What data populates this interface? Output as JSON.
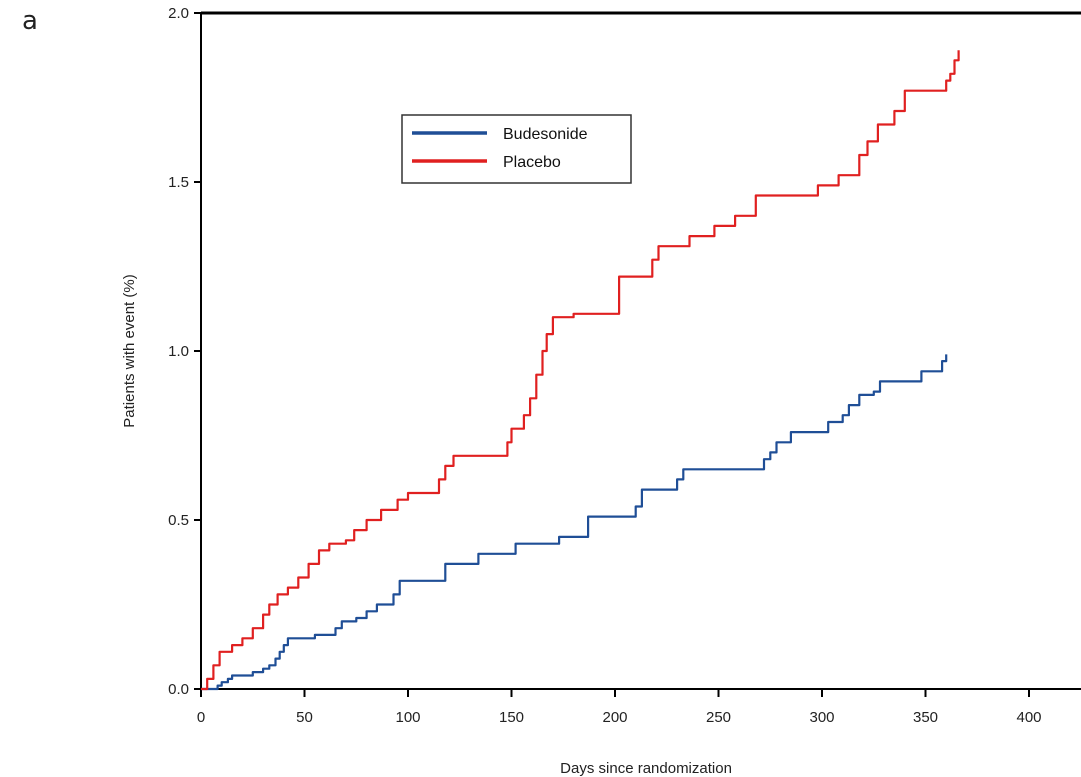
{
  "panel_label": "a",
  "chart_data": {
    "type": "line",
    "step": true,
    "title": "",
    "xlabel": "Days since randomization",
    "ylabel": "Patients with event (%)",
    "xlim": [
      0,
      430
    ],
    "ylim": [
      0,
      2.0
    ],
    "xticks": [
      0,
      50,
      100,
      150,
      200,
      250,
      300,
      350,
      400
    ],
    "yticks": [
      0.0,
      0.5,
      1.0,
      1.5,
      2.0
    ],
    "xtick_labels": [
      "0",
      "50",
      "100",
      "150",
      "200",
      "250",
      "300",
      "350",
      "400"
    ],
    "ytick_labels": [
      "0.0",
      "0.5",
      "1.0",
      "1.5",
      "2.0"
    ],
    "legend_position": "upper-left-inside",
    "series": [
      {
        "name": "Budesonide",
        "color": "#1f4e96",
        "points": [
          [
            0,
            0
          ],
          [
            5,
            0
          ],
          [
            8,
            0.01
          ],
          [
            10,
            0.02
          ],
          [
            13,
            0.03
          ],
          [
            15,
            0.04
          ],
          [
            20,
            0.04
          ],
          [
            25,
            0.05
          ],
          [
            30,
            0.06
          ],
          [
            33,
            0.07
          ],
          [
            36,
            0.09
          ],
          [
            38,
            0.11
          ],
          [
            40,
            0.13
          ],
          [
            42,
            0.15
          ],
          [
            50,
            0.15
          ],
          [
            55,
            0.16
          ],
          [
            62,
            0.16
          ],
          [
            65,
            0.18
          ],
          [
            68,
            0.2
          ],
          [
            75,
            0.21
          ],
          [
            80,
            0.23
          ],
          [
            85,
            0.25
          ],
          [
            90,
            0.25
          ],
          [
            93,
            0.28
          ],
          [
            96,
            0.32
          ],
          [
            115,
            0.32
          ],
          [
            118,
            0.37
          ],
          [
            130,
            0.37
          ],
          [
            134,
            0.4
          ],
          [
            150,
            0.4
          ],
          [
            152,
            0.43
          ],
          [
            170,
            0.43
          ],
          [
            173,
            0.45
          ],
          [
            185,
            0.45
          ],
          [
            187,
            0.51
          ],
          [
            205,
            0.51
          ],
          [
            210,
            0.54
          ],
          [
            213,
            0.59
          ],
          [
            228,
            0.59
          ],
          [
            230,
            0.62
          ],
          [
            233,
            0.65
          ],
          [
            270,
            0.65
          ],
          [
            272,
            0.68
          ],
          [
            275,
            0.7
          ],
          [
            278,
            0.73
          ],
          [
            285,
            0.76
          ],
          [
            300,
            0.76
          ],
          [
            303,
            0.79
          ],
          [
            310,
            0.81
          ],
          [
            313,
            0.84
          ],
          [
            318,
            0.87
          ],
          [
            325,
            0.88
          ],
          [
            328,
            0.91
          ],
          [
            345,
            0.91
          ],
          [
            348,
            0.94
          ],
          [
            355,
            0.94
          ],
          [
            358,
            0.97
          ],
          [
            360,
            0.99
          ]
        ]
      },
      {
        "name": "Placebo",
        "color": "#e02020",
        "points": [
          [
            0,
            0
          ],
          [
            3,
            0.03
          ],
          [
            6,
            0.07
          ],
          [
            9,
            0.11
          ],
          [
            15,
            0.13
          ],
          [
            20,
            0.15
          ],
          [
            25,
            0.18
          ],
          [
            30,
            0.22
          ],
          [
            33,
            0.25
          ],
          [
            37,
            0.28
          ],
          [
            42,
            0.3
          ],
          [
            47,
            0.33
          ],
          [
            52,
            0.37
          ],
          [
            57,
            0.41
          ],
          [
            62,
            0.43
          ],
          [
            70,
            0.44
          ],
          [
            74,
            0.47
          ],
          [
            80,
            0.5
          ],
          [
            87,
            0.53
          ],
          [
            95,
            0.56
          ],
          [
            100,
            0.58
          ],
          [
            112,
            0.58
          ],
          [
            115,
            0.62
          ],
          [
            118,
            0.66
          ],
          [
            122,
            0.69
          ],
          [
            145,
            0.69
          ],
          [
            148,
            0.73
          ],
          [
            150,
            0.77
          ],
          [
            156,
            0.81
          ],
          [
            159,
            0.86
          ],
          [
            162,
            0.93
          ],
          [
            165,
            1.0
          ],
          [
            167,
            1.05
          ],
          [
            170,
            1.1
          ],
          [
            180,
            1.11
          ],
          [
            200,
            1.11
          ],
          [
            202,
            1.22
          ],
          [
            215,
            1.22
          ],
          [
            218,
            1.27
          ],
          [
            221,
            1.31
          ],
          [
            233,
            1.31
          ],
          [
            236,
            1.34
          ],
          [
            245,
            1.34
          ],
          [
            248,
            1.37
          ],
          [
            255,
            1.37
          ],
          [
            258,
            1.4
          ],
          [
            265,
            1.4
          ],
          [
            268,
            1.46
          ],
          [
            295,
            1.46
          ],
          [
            298,
            1.49
          ],
          [
            305,
            1.49
          ],
          [
            308,
            1.52
          ],
          [
            315,
            1.52
          ],
          [
            318,
            1.58
          ],
          [
            322,
            1.62
          ],
          [
            327,
            1.67
          ],
          [
            335,
            1.71
          ],
          [
            340,
            1.77
          ],
          [
            358,
            1.77
          ],
          [
            360,
            1.8
          ],
          [
            362,
            1.82
          ],
          [
            364,
            1.86
          ],
          [
            366,
            1.89
          ]
        ]
      }
    ]
  }
}
